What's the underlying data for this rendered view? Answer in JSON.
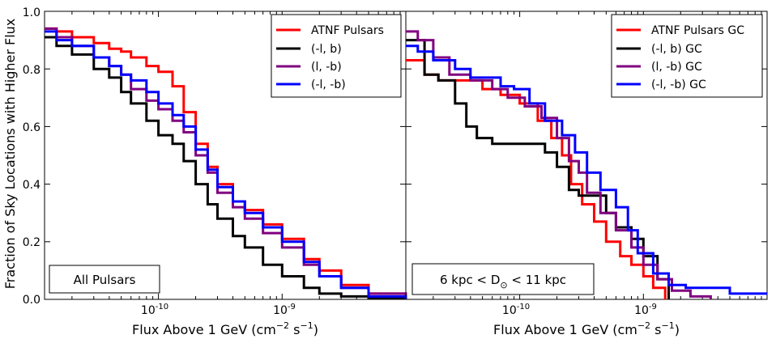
{
  "figure": {
    "ylabel": "Fraction of Sky Locations with Higher Flux"
  },
  "chart_data": [
    {
      "type": "line",
      "step": true,
      "panel": "left",
      "xscale": "log",
      "xlim": [
        1.2e-11,
        1e-08
      ],
      "ylim": [
        0.0,
        1.0
      ],
      "xlabel_base": "Flux Above 1 GeV (cm",
      "xlabel_exp1": "−2",
      "xlabel_mid": " s",
      "xlabel_exp2": "−1",
      "xlabel_end": ")",
      "ylabel": "Fraction of Sky Locations with Higher Flux",
      "yticks": [
        "0.0",
        "0.2",
        "0.4",
        "0.6",
        "0.8",
        "1.0"
      ],
      "xticks": [
        {
          "value": 1e-10,
          "base": "10",
          "exp": "-10"
        },
        {
          "value": 1e-09,
          "base": "10",
          "exp": "-9"
        }
      ],
      "annotation": "All Pulsars",
      "legend_position": "top-right",
      "series": [
        {
          "name": "ATNF Pulsars",
          "color": "#ff0000",
          "x": [
            1.2e-11,
            1.5e-11,
            2e-11,
            3e-11,
            4e-11,
            5e-11,
            6e-11,
            8e-11,
            1e-10,
            1.3e-10,
            1.6e-10,
            2e-10,
            2.5e-10,
            3e-10,
            4e-10,
            5e-10,
            7e-10,
            1e-09,
            1.5e-09,
            2e-09,
            3e-09,
            5e-09,
            1e-08
          ],
          "y": [
            0.94,
            0.93,
            0.91,
            0.89,
            0.87,
            0.86,
            0.84,
            0.81,
            0.79,
            0.74,
            0.65,
            0.54,
            0.46,
            0.4,
            0.34,
            0.31,
            0.26,
            0.21,
            0.14,
            0.1,
            0.05,
            0.02,
            0.0
          ]
        },
        {
          "name": "(-l, b)",
          "color": "#000000",
          "x": [
            1.2e-11,
            1.5e-11,
            2e-11,
            3e-11,
            4e-11,
            5e-11,
            6e-11,
            8e-11,
            1e-10,
            1.3e-10,
            1.6e-10,
            2e-10,
            2.5e-10,
            3e-10,
            4e-10,
            5e-10,
            7e-10,
            1e-09,
            1.5e-09,
            2e-09,
            3e-09,
            5e-09,
            1e-08
          ],
          "y": [
            0.91,
            0.88,
            0.85,
            0.8,
            0.77,
            0.72,
            0.68,
            0.62,
            0.57,
            0.54,
            0.48,
            0.4,
            0.33,
            0.28,
            0.22,
            0.18,
            0.12,
            0.08,
            0.04,
            0.02,
            0.01,
            0.005,
            0.0
          ]
        },
        {
          "name": "(l, -b)",
          "color": "#800080",
          "x": [
            1.2e-11,
            1.5e-11,
            2e-11,
            3e-11,
            4e-11,
            5e-11,
            6e-11,
            8e-11,
            1e-10,
            1.3e-10,
            1.6e-10,
            2e-10,
            2.5e-10,
            3e-10,
            4e-10,
            5e-10,
            7e-10,
            1e-09,
            1.5e-09,
            2e-09,
            3e-09,
            5e-09,
            1e-08
          ],
          "y": [
            0.94,
            0.91,
            0.88,
            0.84,
            0.81,
            0.78,
            0.73,
            0.69,
            0.66,
            0.62,
            0.58,
            0.5,
            0.44,
            0.37,
            0.32,
            0.28,
            0.23,
            0.18,
            0.12,
            0.08,
            0.04,
            0.02,
            0.0
          ]
        },
        {
          "name": "(-l, -b)",
          "color": "#0000ff",
          "x": [
            1.2e-11,
            1.5e-11,
            2e-11,
            3e-11,
            4e-11,
            5e-11,
            6e-11,
            8e-11,
            1e-10,
            1.3e-10,
            1.6e-10,
            2e-10,
            2.5e-10,
            3e-10,
            4e-10,
            5e-10,
            7e-10,
            1e-09,
            1.5e-09,
            2e-09,
            3e-09,
            5e-09,
            1e-08
          ],
          "y": [
            0.93,
            0.9,
            0.88,
            0.84,
            0.81,
            0.78,
            0.76,
            0.72,
            0.68,
            0.64,
            0.6,
            0.52,
            0.45,
            0.39,
            0.34,
            0.3,
            0.25,
            0.2,
            0.13,
            0.08,
            0.04,
            0.01,
            0.0
          ]
        }
      ]
    },
    {
      "type": "line",
      "step": true,
      "panel": "right",
      "xscale": "log",
      "xlim": [
        1.2e-11,
        1e-08
      ],
      "ylim": [
        0.0,
        1.0
      ],
      "xlabel_base": "Flux Above 1 GeV (cm",
      "xlabel_exp1": "−2",
      "xlabel_mid": " s",
      "xlabel_exp2": "−1",
      "xlabel_end": ")",
      "xticks": [
        {
          "value": 1e-10,
          "base": "10",
          "exp": "-10"
        },
        {
          "value": 1e-09,
          "base": "10",
          "exp": "-9"
        }
      ],
      "annotation_pre": "6 kpc < D",
      "annotation_sub": "⊙",
      "annotation_post": " < 11 kpc",
      "legend_position": "top-right",
      "series": [
        {
          "name": "ATNF Pulsars GC",
          "color": "#ff0000",
          "x": [
            1.2e-11,
            1.7e-11,
            2.2e-11,
            3.5e-11,
            5e-11,
            7e-11,
            1e-10,
            1.4e-10,
            1.8e-10,
            2.2e-10,
            2.6e-10,
            3.2e-10,
            4e-10,
            5e-10,
            6.5e-10,
            8e-10,
            1e-09,
            1.2e-09,
            1.5e-09
          ],
          "y": [
            0.83,
            0.78,
            0.76,
            0.76,
            0.73,
            0.71,
            0.68,
            0.62,
            0.56,
            0.5,
            0.4,
            0.33,
            0.27,
            0.2,
            0.15,
            0.12,
            0.08,
            0.04,
            0.0
          ]
        },
        {
          "name": "(-l, b) GC",
          "color": "#000000",
          "x": [
            1.2e-11,
            1.7e-11,
            2.2e-11,
            3e-11,
            3.7e-11,
            4.5e-11,
            6e-11,
            8e-11,
            1.1e-10,
            1.6e-10,
            2e-10,
            2.5e-10,
            3e-10,
            4e-10,
            5e-10,
            6e-10,
            8e-10,
            1e-09,
            1.3e-09,
            1.6e-09
          ],
          "y": [
            0.9,
            0.78,
            0.76,
            0.68,
            0.6,
            0.56,
            0.54,
            0.54,
            0.54,
            0.51,
            0.46,
            0.38,
            0.36,
            0.36,
            0.3,
            0.25,
            0.21,
            0.15,
            0.07,
            0.0
          ]
        },
        {
          "name": "(l, -b) GC",
          "color": "#800080",
          "x": [
            1.2e-11,
            1.5e-11,
            2e-11,
            2.7e-11,
            4e-11,
            6e-11,
            8e-11,
            1.1e-10,
            1.5e-10,
            2e-10,
            2.5e-10,
            3e-10,
            3.5e-10,
            4.5e-10,
            6e-10,
            8e-10,
            1e-09,
            1.3e-09,
            1.7e-09,
            2.4e-09,
            3.5e-09
          ],
          "y": [
            0.93,
            0.9,
            0.84,
            0.78,
            0.76,
            0.73,
            0.7,
            0.67,
            0.63,
            0.56,
            0.48,
            0.44,
            0.37,
            0.3,
            0.24,
            0.18,
            0.12,
            0.07,
            0.03,
            0.01,
            0.0
          ]
        },
        {
          "name": "(-l, -b) GC",
          "color": "#0000ff",
          "x": [
            1.2e-11,
            1.5e-11,
            2e-11,
            3e-11,
            4e-11,
            5e-11,
            7e-11,
            9e-11,
            1.2e-10,
            1.6e-10,
            2.2e-10,
            2.8e-10,
            3.5e-10,
            4.5e-10,
            6e-10,
            7.5e-10,
            9e-10,
            1.2e-09,
            1.6e-09,
            2.2e-09,
            3.5e-09,
            5e-09,
            1e-08
          ],
          "y": [
            0.88,
            0.86,
            0.83,
            0.8,
            0.77,
            0.77,
            0.74,
            0.73,
            0.68,
            0.62,
            0.57,
            0.51,
            0.44,
            0.38,
            0.32,
            0.24,
            0.16,
            0.09,
            0.05,
            0.04,
            0.04,
            0.02,
            0.02
          ]
        }
      ]
    }
  ]
}
